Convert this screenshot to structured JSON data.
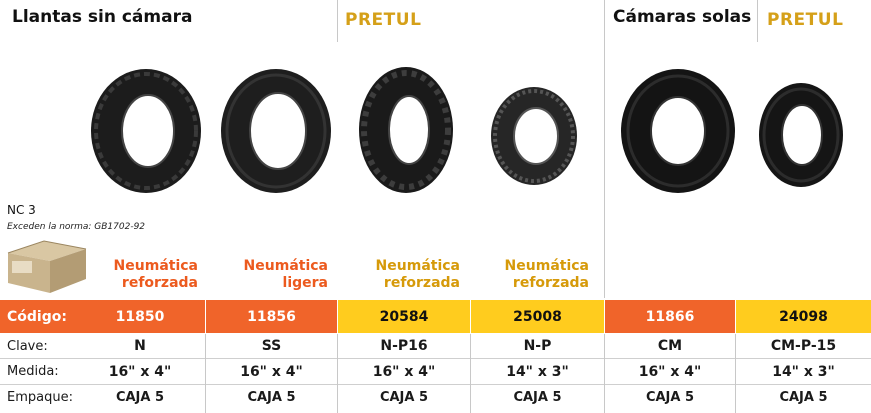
{
  "header": {
    "section_tires": "Llantas sin cámara",
    "brand_left": "PRETUL",
    "section_tubes": "Cámaras solas",
    "brand_right": "PRETUL"
  },
  "notes": {
    "nc": "NC 3",
    "norma": "Exceden la norma: GB1702-92"
  },
  "colors": {
    "orange": "#f0642a",
    "yellow": "#ffcc1e",
    "orange_text": "#ec5a1e",
    "gold_text": "#d69a0a",
    "brand": "#d5a019"
  },
  "products": [
    {
      "type_line1": "Neumática",
      "type_line2": "reforzada",
      "codigo": "11850",
      "clave": "N",
      "medida": "16\" x 4\"",
      "empaque": "CAJA 5",
      "style": "orange"
    },
    {
      "type_line1": "Neumática",
      "type_line2": "ligera",
      "codigo": "11856",
      "clave": "SS",
      "medida": "16\" x 4\"",
      "empaque": "CAJA 5",
      "style": "orange"
    },
    {
      "type_line1": "Neumática",
      "type_line2": "reforzada",
      "codigo": "20584",
      "clave": "N-P16",
      "medida": "16\" x 4\"",
      "empaque": "CAJA 5",
      "style": "yellow"
    },
    {
      "type_line1": "Neumática",
      "type_line2": "reforzada",
      "codigo": "25008",
      "clave": "N-P",
      "medida": "14\" x 3\"",
      "empaque": "CAJA 5",
      "style": "yellow"
    },
    {
      "type_line1": "",
      "type_line2": "",
      "codigo": "11866",
      "clave": "CM",
      "medida": "16\" x 4\"",
      "empaque": "CAJA 5",
      "style": "orange"
    },
    {
      "type_line1": "",
      "type_line2": "",
      "codigo": "24098",
      "clave": "CM-P-15",
      "medida": "14\" x 3\"",
      "empaque": "CAJA 5",
      "style": "yellow"
    }
  ],
  "row_labels": {
    "codigo": "Código:",
    "clave": "Clave:",
    "medida": "Medida:",
    "empaque": "Empaque:"
  }
}
